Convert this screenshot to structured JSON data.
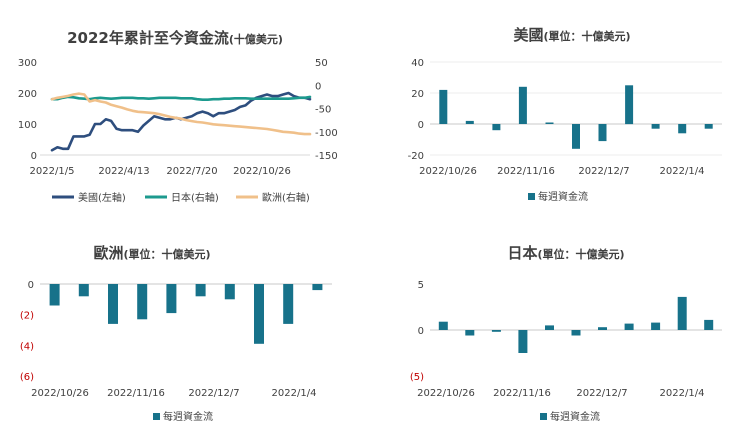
{
  "chart_data": [
    {
      "type": "line",
      "title": "2022年累計至今資金流",
      "title_unit": "(十億美元)",
      "x_tick_labels": [
        "2022/1/5",
        "2022/4/13",
        "2022/7/20",
        "2022/10/26"
      ],
      "y_left_ticks": [
        "300",
        "200",
        "100",
        "0"
      ],
      "y_right_ticks": [
        "50",
        "0",
        "-50",
        "-100",
        "-150"
      ],
      "ylim_left": [
        0,
        300
      ],
      "ylim_right": [
        -150,
        50
      ],
      "series": [
        {
          "name": "美國(左軸)",
          "axis": "left",
          "color": "#2e4e7e",
          "values": [
            15,
            25,
            20,
            20,
            60,
            60,
            60,
            65,
            100,
            100,
            115,
            110,
            85,
            80,
            80,
            80,
            75,
            95,
            110,
            125,
            120,
            115,
            115,
            120,
            115,
            120,
            125,
            135,
            140,
            135,
            125,
            135,
            135,
            140,
            145,
            155,
            160,
            175,
            185,
            190,
            195,
            190,
            190,
            195,
            200,
            190,
            185,
            185,
            180
          ]
        },
        {
          "name": "日本(右軸)",
          "axis": "right",
          "color": "#1c9a8e",
          "values": [
            -30,
            -30,
            -27,
            -25,
            -26,
            -28,
            -29,
            -30,
            -28,
            -27,
            -28,
            -29,
            -28,
            -27,
            -27,
            -27,
            -28,
            -28,
            -29,
            -28,
            -27,
            -27,
            -27,
            -27,
            -28,
            -28,
            -28,
            -30,
            -31,
            -31,
            -30,
            -30,
            -29,
            -29,
            -28,
            -28,
            -28,
            -29,
            -29,
            -29,
            -29,
            -29,
            -29,
            -29,
            -29,
            -28,
            -27,
            -27,
            -25
          ]
        },
        {
          "name": "歐洲(右軸)",
          "axis": "right",
          "color": "#f0c08a",
          "values": [
            -30,
            -27,
            -25,
            -23,
            -20,
            -18,
            -20,
            -35,
            -32,
            -35,
            -37,
            -42,
            -45,
            -48,
            -52,
            -55,
            -57,
            -58,
            -59,
            -60,
            -62,
            -65,
            -68,
            -70,
            -72,
            -75,
            -77,
            -79,
            -80,
            -82,
            -84,
            -85,
            -86,
            -87,
            -88,
            -89,
            -90,
            -91,
            -92,
            -93,
            -94,
            -96,
            -98,
            -100,
            -101,
            -102,
            -104,
            -105,
            -105
          ]
        }
      ]
    },
    {
      "type": "bar",
      "title": "美國",
      "title_unit": "(單位：十億美元)",
      "x_tick_labels": [
        "2022/10/26",
        "2022/11/16",
        "2022/12/7",
        "2022/1/4"
      ],
      "y_ticks": [
        "40",
        "20",
        "0",
        "-20"
      ],
      "ylim": [
        -20,
        40
      ],
      "legend": "每週資金流",
      "color": "#17728a",
      "values": [
        22,
        2,
        -4,
        24,
        1,
        -16,
        -11,
        25,
        -3,
        -6,
        -3
      ]
    },
    {
      "type": "bar",
      "title": "歐洲",
      "title_unit": "(單位：十億美元)",
      "x_tick_labels": [
        "2022/10/26",
        "2022/11/16",
        "2022/12/7",
        "2022/1/4"
      ],
      "y_ticks": [
        "0",
        "(2)",
        "(4)",
        "(6)"
      ],
      "ylim": [
        -6,
        0
      ],
      "legend": "每週資金流",
      "color": "#17728a",
      "values": [
        -1.4,
        -0.8,
        -2.6,
        -2.3,
        -1.9,
        -0.8,
        -1.0,
        -3.9,
        -2.6,
        -0.4
      ]
    },
    {
      "type": "bar",
      "title": "日本",
      "title_unit": "(單位：十億美元)",
      "x_tick_labels": [
        "2022/10/26",
        "2022/11/16",
        "2022/12/7",
        "2022/1/4"
      ],
      "y_ticks": [
        "5",
        "0",
        "(5)"
      ],
      "ylim": [
        -5,
        5
      ],
      "legend": "每週資金流",
      "color": "#17728a",
      "values": [
        0.9,
        -0.6,
        -0.2,
        -2.5,
        0.5,
        -0.6,
        0.3,
        0.7,
        0.8,
        3.6,
        1.1
      ]
    }
  ]
}
